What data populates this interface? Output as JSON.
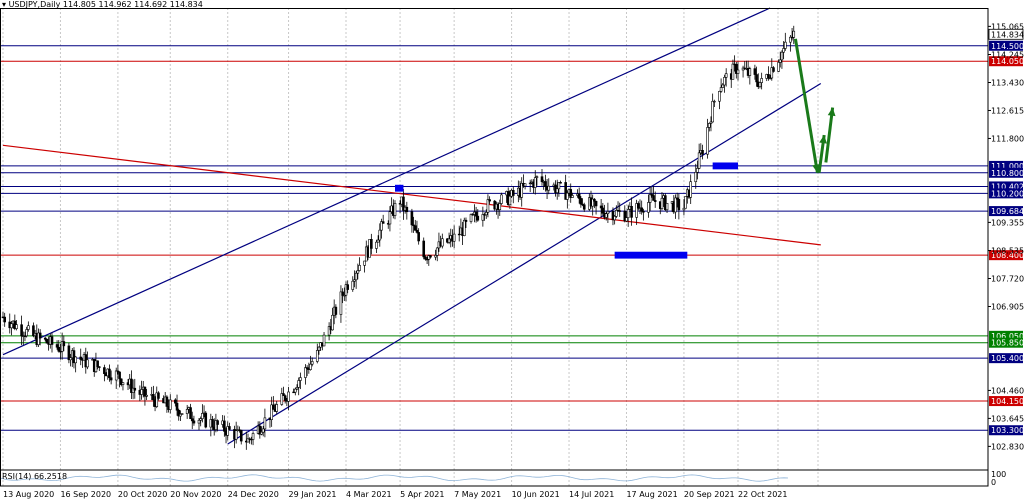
{
  "header": {
    "symbol": "USDJPY,Daily",
    "ohlc": "114.805 114.962 114.692 114.834"
  },
  "indicator": {
    "label": "RSI(14) 66.2518",
    "scale_top": "100",
    "scale_bottom": "0"
  },
  "colors": {
    "background": "#ffffff",
    "candle": "#000000",
    "blue_line": "#000080",
    "red_line": "#cc0000",
    "green_line": "#008000",
    "arrow": "#1a7a1a",
    "zone": "#0000ee",
    "rsi": "#8fb4d8"
  },
  "chart_data": {
    "type": "candlestick",
    "title": "USDJPY,Daily",
    "ylim": [
      102.2,
      115.6
    ],
    "x_ticks": [
      "13 Aug 2020",
      "16 Sep 2020",
      "20 Oct 2020",
      "20 Nov 2020",
      "24 Dec 2020",
      "29 Jan 2021",
      "4 Mar 2021",
      "5 Apr 2021",
      "7 May 2021",
      "10 Jun 2021",
      "14 Jul 2021",
      "17 Aug 2021",
      "20 Sep 2021",
      "22 Oct 2021"
    ],
    "y_ticks": [
      "115.065",
      "114.245",
      "113.430",
      "112.615",
      "111.800",
      "109.355",
      "108.535",
      "107.720",
      "106.905",
      "104.460",
      "103.645",
      "102.830"
    ],
    "price_series": [
      [
        "13 Aug 2020",
        106.6
      ],
      [
        "1 Sep 2020",
        106.0
      ],
      [
        "16 Sep 2020",
        105.7
      ],
      [
        "1 Oct 2020",
        105.3
      ],
      [
        "20 Oct 2020",
        104.9
      ],
      [
        "1 Nov 2020",
        104.4
      ],
      [
        "20 Nov 2020",
        104.0
      ],
      [
        "10 Dec 2020",
        103.6
      ],
      [
        "24 Dec 2020",
        103.3
      ],
      [
        "5 Jan 2021",
        103.0
      ],
      [
        "29 Jan 2021",
        104.4
      ],
      [
        "15 Feb 2021",
        105.5
      ],
      [
        "4 Mar 2021",
        107.5
      ],
      [
        "20 Mar 2021",
        108.8
      ],
      [
        "5 Apr 2021",
        110.0
      ],
      [
        "20 Apr 2021",
        108.4
      ],
      [
        "7 May 2021",
        108.9
      ],
      [
        "25 May 2021",
        109.8
      ],
      [
        "10 Jun 2021",
        110.1
      ],
      [
        "25 Jun 2021",
        110.6
      ],
      [
        "14 Jul 2021",
        110.2
      ],
      [
        "1 Aug 2021",
        109.7
      ],
      [
        "17 Aug 2021",
        109.6
      ],
      [
        "1 Sep 2021",
        110.0
      ],
      [
        "20 Sep 2021",
        109.8
      ],
      [
        "1 Oct 2021",
        111.5
      ],
      [
        "10 Oct 2021",
        113.3
      ],
      [
        "22 Oct 2021",
        113.9
      ],
      [
        "5 Nov 2021",
        113.4
      ],
      [
        "24 Nov 2021",
        114.834
      ]
    ],
    "horizontal_levels": [
      {
        "value": 114.5,
        "label": "114.500",
        "color": "#000080"
      },
      {
        "value": 114.05,
        "label": "114.050",
        "color": "#cc0000"
      },
      {
        "value": 111.0,
        "label": "111.000",
        "color": "#000080"
      },
      {
        "value": 110.8,
        "label": "110.800",
        "color": "#000080"
      },
      {
        "value": 110.402,
        "label": "110.402",
        "color": "#000080"
      },
      {
        "value": 110.2,
        "label": "110.200",
        "color": "#000080"
      },
      {
        "value": 109.684,
        "label": "109.684",
        "color": "#000080"
      },
      {
        "value": 108.4,
        "label": "108.400",
        "color": "#cc0000"
      },
      {
        "value": 106.05,
        "label": "106.050",
        "color": "#008000"
      },
      {
        "value": 105.85,
        "label": "105.850",
        "color": "#008000"
      },
      {
        "value": 105.4,
        "label": "105.400",
        "color": "#000080"
      },
      {
        "value": 104.15,
        "label": "104.150",
        "color": "#cc0000"
      },
      {
        "value": 103.3,
        "label": "103.300",
        "color": "#000080"
      }
    ],
    "current_price": {
      "value": 114.834,
      "label": "114.834"
    },
    "trend_lines": [
      {
        "name": "channel-top",
        "color": "#000080",
        "from": [
          "13 Aug 2020",
          105.5
        ],
        "to": [
          "10 Nov 2021",
          115.6
        ]
      },
      {
        "name": "channel-bottom",
        "color": "#000080",
        "from": [
          "24 Dec 2020",
          102.9
        ],
        "to": [
          "10 Dec 2021",
          113.4
        ]
      },
      {
        "name": "red-trend",
        "color": "#cc0000",
        "from": [
          "13 Aug 2020",
          111.6
        ],
        "to": [
          "10 Dec 2021",
          108.7
        ]
      }
    ],
    "zones": [
      {
        "name": "zone-april",
        "from": "2 Apr 2021",
        "to": "7 Apr 2021",
        "low": 110.25,
        "high": 110.45
      },
      {
        "name": "zone-october",
        "from": "7 Oct 2021",
        "to": "22 Oct 2021",
        "low": 110.9,
        "high": 111.1
      },
      {
        "name": "zone-august",
        "from": "10 Aug 2021",
        "to": "22 Sep 2021",
        "low": 108.3,
        "high": 108.5
      }
    ],
    "arrows": [
      {
        "name": "arrow-down",
        "from": [
          "25 Nov 2021",
          114.7
        ],
        "to": [
          "8 Dec 2021",
          110.8
        ]
      },
      {
        "name": "arrow-up-short",
        "from": [
          "9 Dec 2021",
          110.8
        ],
        "to": [
          "12 Dec 2021",
          111.9
        ]
      },
      {
        "name": "arrow-up-long",
        "from": [
          "13 Dec 2021",
          111.1
        ],
        "to": [
          "17 Dec 2021",
          112.7
        ]
      }
    ]
  }
}
